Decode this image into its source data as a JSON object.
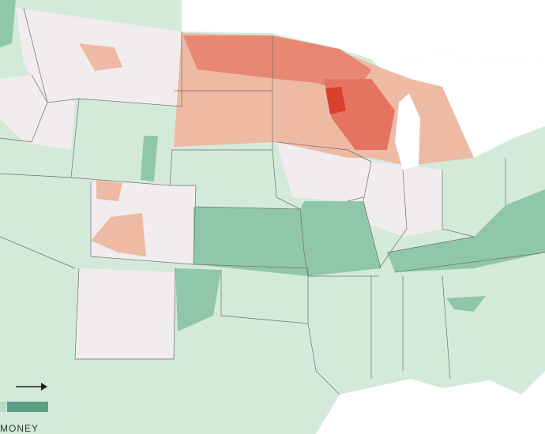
{
  "legend": {
    "label": "MONEY"
  }
}
